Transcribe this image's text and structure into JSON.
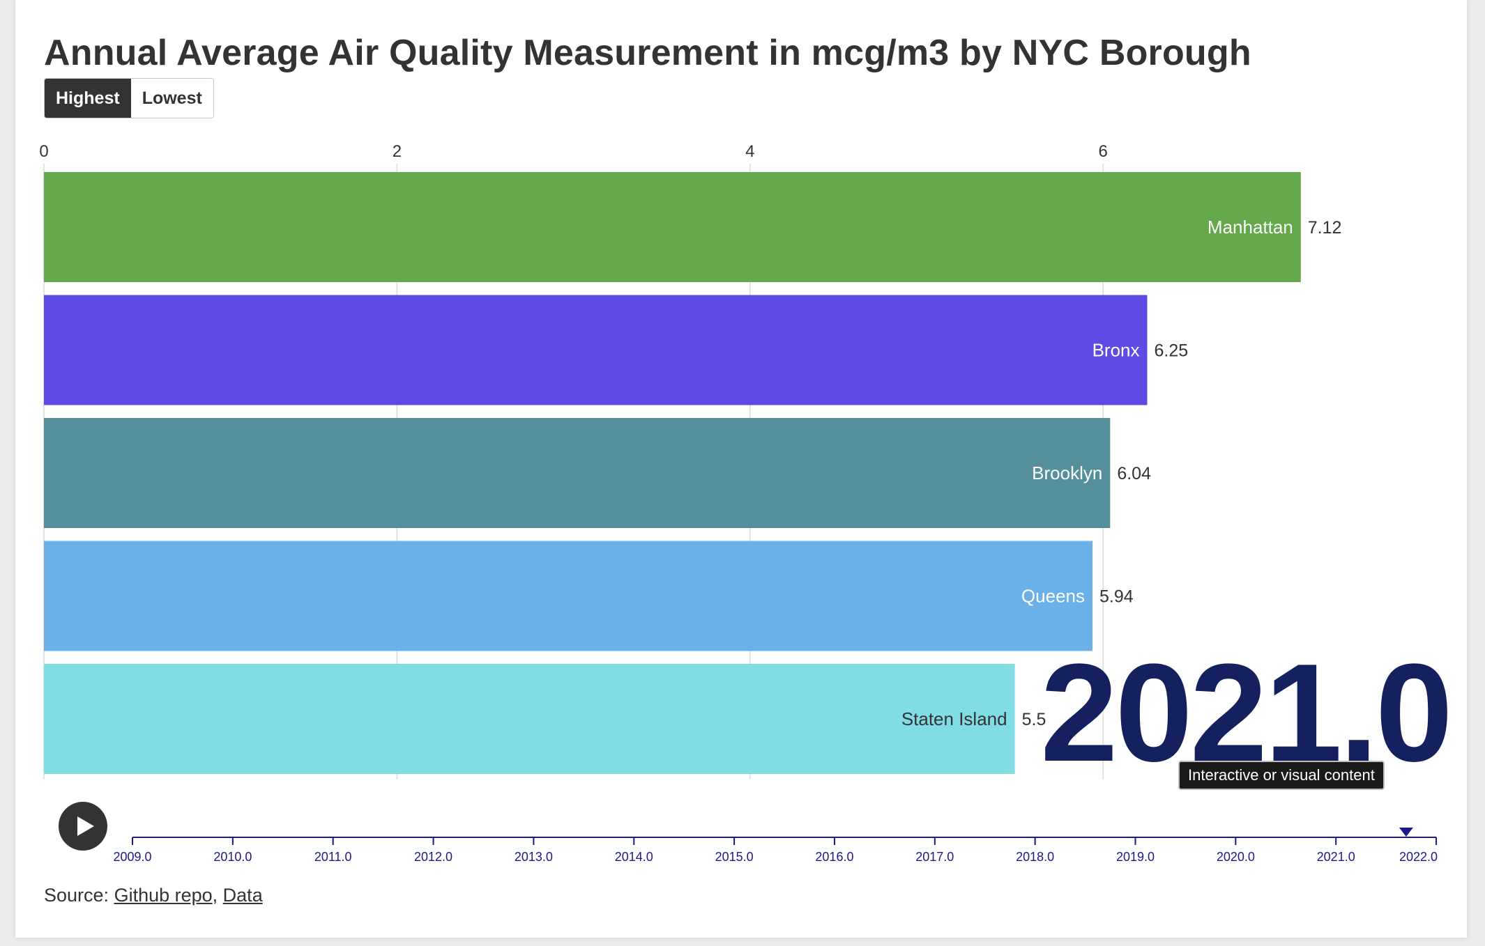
{
  "title": "Annual Average Air Quality Measurement in mcg/m3 by NYC Borough",
  "toggle": {
    "highest_label": "Highest",
    "lowest_label": "Lowest",
    "selected": "Highest"
  },
  "chart_data": {
    "type": "bar",
    "orientation": "horizontal",
    "title": "Annual Average Air Quality Measurement in mcg/m3 by NYC Borough",
    "xlim": [
      0,
      7.7
    ],
    "x_ticks": [
      "0",
      "2",
      "4",
      "6"
    ],
    "categories": [
      "Manhattan",
      "Bronx",
      "Brooklyn",
      "Queens",
      "Staten Island"
    ],
    "values": [
      7.12,
      6.25,
      6.04,
      5.94,
      5.5
    ],
    "value_labels": [
      "7.12",
      "6.25",
      "6.04",
      "5.94",
      "5.5"
    ],
    "colors": [
      "#63a84a",
      "#5d4be3",
      "#568f9c",
      "#6ab1ea",
      "#80dde3"
    ],
    "label_colors": [
      "#ffffff",
      "#ffffff",
      "#ffffff",
      "#ffffff",
      "#333333"
    ],
    "current_year": "2021.0",
    "grid": true
  },
  "timeline": {
    "ticks": [
      "2009.0",
      "2010.0",
      "2011.0",
      "2012.0",
      "2013.0",
      "2014.0",
      "2015.0",
      "2016.0",
      "2017.0",
      "2018.0",
      "2019.0",
      "2020.0",
      "2021.0",
      "2022.0"
    ],
    "current": 2021.7,
    "color": "#1a1a8c"
  },
  "tooltip": "Interactive or visual content",
  "source": {
    "prefix": "Source: ",
    "link1": "Github repo",
    "separator": ", ",
    "link2": "Data"
  },
  "play_icon": "play-icon",
  "colors": {
    "year_label": "#15205e",
    "text": "#333333",
    "grid": "#e2e2e2"
  }
}
